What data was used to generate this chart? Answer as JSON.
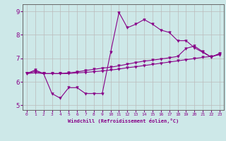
{
  "xlabel": "Windchill (Refroidissement éolien,°C)",
  "bg_color": "#cde8e8",
  "line_color": "#880088",
  "grid_color": "#bbbbbb",
  "ylim": [
    4.8,
    9.3
  ],
  "xlim": [
    -0.5,
    23.5
  ],
  "xticks": [
    0,
    1,
    2,
    3,
    4,
    5,
    6,
    7,
    8,
    9,
    10,
    11,
    12,
    13,
    14,
    15,
    16,
    17,
    18,
    19,
    20,
    21,
    22,
    23
  ],
  "yticks": [
    5,
    6,
    7,
    8,
    9
  ],
  "line1_x": [
    0,
    1,
    2,
    3,
    4,
    5,
    6,
    7,
    8,
    9,
    10,
    11,
    12,
    13,
    14,
    15,
    16,
    17,
    18,
    19,
    20,
    21,
    22,
    23
  ],
  "line1_y": [
    6.35,
    6.5,
    6.35,
    5.5,
    5.3,
    5.75,
    5.75,
    5.5,
    5.5,
    5.5,
    7.25,
    8.95,
    8.3,
    8.45,
    8.65,
    8.45,
    8.2,
    8.1,
    7.75,
    7.75,
    7.45,
    7.25,
    7.05,
    7.2
  ],
  "line2_x": [
    0,
    1,
    2,
    3,
    4,
    5,
    6,
    7,
    8,
    9,
    10,
    11,
    12,
    13,
    14,
    15,
    16,
    17,
    18,
    19,
    20,
    21,
    22,
    23
  ],
  "line2_y": [
    6.35,
    6.45,
    6.35,
    6.35,
    6.35,
    6.38,
    6.42,
    6.48,
    6.53,
    6.58,
    6.62,
    6.68,
    6.75,
    6.82,
    6.88,
    6.92,
    6.97,
    7.02,
    7.08,
    7.42,
    7.52,
    7.28,
    7.05,
    7.2
  ],
  "line3_x": [
    0,
    1,
    2,
    3,
    4,
    5,
    6,
    7,
    8,
    9,
    10,
    11,
    12,
    13,
    14,
    15,
    16,
    17,
    18,
    19,
    20,
    21,
    22,
    23
  ],
  "line3_y": [
    6.35,
    6.38,
    6.35,
    6.35,
    6.35,
    6.35,
    6.38,
    6.4,
    6.43,
    6.46,
    6.5,
    6.54,
    6.6,
    6.64,
    6.69,
    6.74,
    6.79,
    6.84,
    6.89,
    6.94,
    6.99,
    7.04,
    7.08,
    7.15
  ]
}
